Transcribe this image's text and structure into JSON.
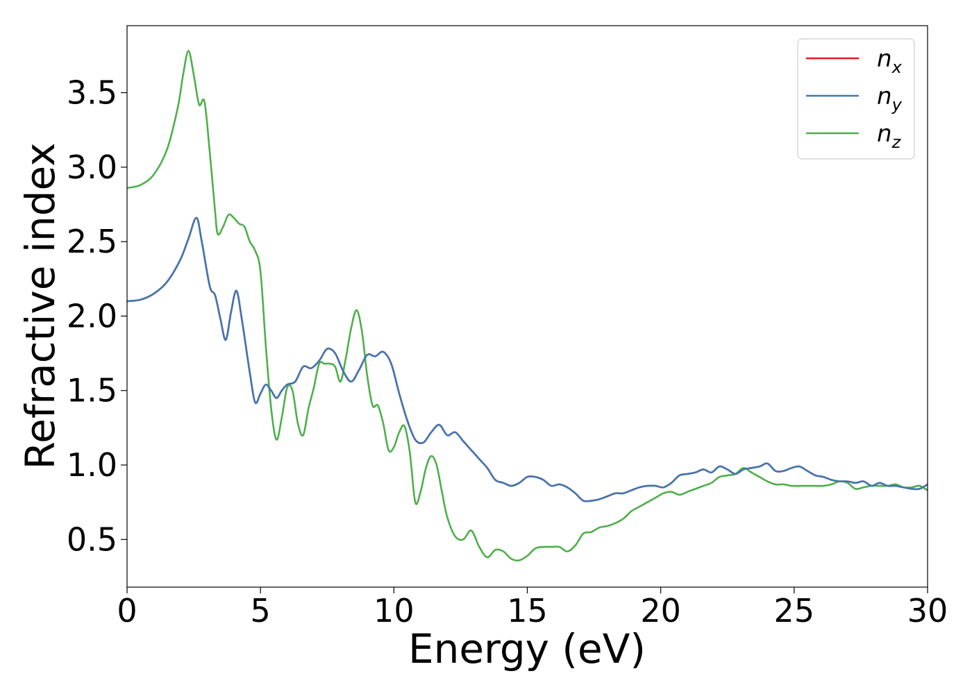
{
  "chart_data": {
    "type": "line",
    "xlabel": "Energy (eV)",
    "ylabel": "Refractive index",
    "xlim": [
      0,
      30
    ],
    "ylim": [
      0.18,
      3.95
    ],
    "x_ticks": [
      0,
      5,
      10,
      15,
      20,
      25,
      30
    ],
    "y_ticks": [
      0.5,
      1.0,
      1.5,
      2.0,
      2.5,
      3.0,
      3.5
    ],
    "x_tick_labels": [
      "0",
      "5",
      "10",
      "15",
      "20",
      "25",
      "30"
    ],
    "y_tick_labels": [
      "0.5",
      "1.0",
      "1.5",
      "2.0",
      "2.5",
      "3.0",
      "3.5"
    ],
    "grid": false,
    "legend_position": "top-right",
    "series": [
      {
        "name": "n_x",
        "label_base": "n",
        "label_sub": "x",
        "color": "#e41a1c",
        "x": [
          0,
          0.5,
          1,
          1.5,
          2,
          2.3,
          2.6,
          2.8,
          3.1,
          3.3,
          3.5,
          3.7,
          3.9,
          4.1,
          4.3,
          4.6,
          4.8,
          5.0,
          5.2,
          5.4,
          5.6,
          5.8,
          6.0,
          6.3,
          6.6,
          6.9,
          7.2,
          7.5,
          7.8,
          8.1,
          8.4,
          8.7,
          9.0,
          9.3,
          9.6,
          9.9,
          10.2,
          10.5,
          10.8,
          11.1,
          11.4,
          11.7,
          12.0,
          12.3,
          12.6,
          12.9,
          13.2,
          13.5,
          13.8,
          14.1,
          14.4,
          14.7,
          15.0,
          15.3,
          15.6,
          15.9,
          16.2,
          16.5,
          16.8,
          17.1,
          17.4,
          17.7,
          18.0,
          18.3,
          18.6,
          18.9,
          19.2,
          19.5,
          19.8,
          20.1,
          20.4,
          20.7,
          21.0,
          21.3,
          21.6,
          21.9,
          22.2,
          22.5,
          22.8,
          23.1,
          23.4,
          23.7,
          24.0,
          24.3,
          24.6,
          24.9,
          25.2,
          25.5,
          25.8,
          26.1,
          26.4,
          26.7,
          27.0,
          27.3,
          27.6,
          27.9,
          28.2,
          28.5,
          28.8,
          29.1,
          29.4,
          29.7,
          30.0
        ],
        "y": [
          2.1,
          2.11,
          2.15,
          2.23,
          2.38,
          2.52,
          2.66,
          2.5,
          2.2,
          2.14,
          1.98,
          1.84,
          2.03,
          2.17,
          1.98,
          1.62,
          1.42,
          1.48,
          1.54,
          1.5,
          1.45,
          1.5,
          1.54,
          1.56,
          1.66,
          1.65,
          1.7,
          1.78,
          1.75,
          1.63,
          1.56,
          1.64,
          1.74,
          1.73,
          1.76,
          1.68,
          1.48,
          1.3,
          1.17,
          1.15,
          1.22,
          1.27,
          1.2,
          1.22,
          1.16,
          1.1,
          1.04,
          0.98,
          0.9,
          0.88,
          0.86,
          0.88,
          0.92,
          0.92,
          0.9,
          0.86,
          0.87,
          0.85,
          0.81,
          0.76,
          0.76,
          0.77,
          0.79,
          0.81,
          0.81,
          0.83,
          0.85,
          0.86,
          0.86,
          0.85,
          0.88,
          0.93,
          0.94,
          0.95,
          0.97,
          0.95,
          0.99,
          0.97,
          0.94,
          0.97,
          0.98,
          0.99,
          1.01,
          0.96,
          0.96,
          0.98,
          0.99,
          0.96,
          0.93,
          0.92,
          0.9,
          0.89,
          0.89,
          0.88,
          0.89,
          0.86,
          0.88,
          0.86,
          0.86,
          0.85,
          0.84,
          0.84,
          0.87
        ]
      },
      {
        "name": "n_y",
        "label_base": "n",
        "label_sub": "y",
        "color": "#3f77b2",
        "x": [
          0,
          0.5,
          1,
          1.5,
          2,
          2.3,
          2.6,
          2.8,
          3.1,
          3.3,
          3.5,
          3.7,
          3.9,
          4.1,
          4.3,
          4.6,
          4.8,
          5.0,
          5.2,
          5.4,
          5.6,
          5.8,
          6.0,
          6.3,
          6.6,
          6.9,
          7.2,
          7.5,
          7.8,
          8.1,
          8.4,
          8.7,
          9.0,
          9.3,
          9.6,
          9.9,
          10.2,
          10.5,
          10.8,
          11.1,
          11.4,
          11.7,
          12.0,
          12.3,
          12.6,
          12.9,
          13.2,
          13.5,
          13.8,
          14.1,
          14.4,
          14.7,
          15.0,
          15.3,
          15.6,
          15.9,
          16.2,
          16.5,
          16.8,
          17.1,
          17.4,
          17.7,
          18.0,
          18.3,
          18.6,
          18.9,
          19.2,
          19.5,
          19.8,
          20.1,
          20.4,
          20.7,
          21.0,
          21.3,
          21.6,
          21.9,
          22.2,
          22.5,
          22.8,
          23.1,
          23.4,
          23.7,
          24.0,
          24.3,
          24.6,
          24.9,
          25.2,
          25.5,
          25.8,
          26.1,
          26.4,
          26.7,
          27.0,
          27.3,
          27.6,
          27.9,
          28.2,
          28.5,
          28.8,
          29.1,
          29.4,
          29.7,
          30.0
        ],
        "y": [
          2.1,
          2.11,
          2.15,
          2.23,
          2.38,
          2.52,
          2.66,
          2.5,
          2.2,
          2.14,
          1.98,
          1.84,
          2.03,
          2.17,
          1.98,
          1.62,
          1.42,
          1.48,
          1.54,
          1.5,
          1.45,
          1.5,
          1.54,
          1.56,
          1.66,
          1.65,
          1.7,
          1.78,
          1.75,
          1.63,
          1.56,
          1.64,
          1.74,
          1.73,
          1.76,
          1.68,
          1.48,
          1.3,
          1.17,
          1.15,
          1.22,
          1.27,
          1.2,
          1.22,
          1.16,
          1.1,
          1.04,
          0.98,
          0.9,
          0.88,
          0.86,
          0.88,
          0.92,
          0.92,
          0.9,
          0.86,
          0.87,
          0.85,
          0.81,
          0.76,
          0.76,
          0.77,
          0.79,
          0.81,
          0.81,
          0.83,
          0.85,
          0.86,
          0.86,
          0.85,
          0.88,
          0.93,
          0.94,
          0.95,
          0.97,
          0.95,
          0.99,
          0.97,
          0.94,
          0.97,
          0.98,
          0.99,
          1.01,
          0.96,
          0.96,
          0.98,
          0.99,
          0.96,
          0.93,
          0.92,
          0.9,
          0.89,
          0.89,
          0.88,
          0.89,
          0.86,
          0.88,
          0.86,
          0.86,
          0.85,
          0.84,
          0.84,
          0.87
        ]
      },
      {
        "name": "n_z",
        "label_base": "n",
        "label_sub": "z",
        "color": "#4daf4a",
        "x": [
          0,
          0.5,
          1,
          1.5,
          1.9,
          2.1,
          2.3,
          2.5,
          2.7,
          2.9,
          3.1,
          3.3,
          3.4,
          3.6,
          3.8,
          4.0,
          4.2,
          4.4,
          4.6,
          4.8,
          5.0,
          5.2,
          5.4,
          5.6,
          5.8,
          6.0,
          6.2,
          6.4,
          6.6,
          6.8,
          7.0,
          7.2,
          7.4,
          7.6,
          7.8,
          8.0,
          8.2,
          8.4,
          8.6,
          8.8,
          9.0,
          9.2,
          9.4,
          9.6,
          9.8,
          10.0,
          10.2,
          10.4,
          10.6,
          10.8,
          11.0,
          11.2,
          11.4,
          11.6,
          11.8,
          12.0,
          12.3,
          12.6,
          12.9,
          13.2,
          13.5,
          13.8,
          14.1,
          14.4,
          14.7,
          15.0,
          15.3,
          15.6,
          15.9,
          16.2,
          16.5,
          16.8,
          17.1,
          17.4,
          17.7,
          18.0,
          18.3,
          18.6,
          18.9,
          19.2,
          19.5,
          19.8,
          20.1,
          20.4,
          20.7,
          21.0,
          21.3,
          21.6,
          21.9,
          22.2,
          22.5,
          22.8,
          23.1,
          23.4,
          23.7,
          24.0,
          24.3,
          24.6,
          24.9,
          25.2,
          25.5,
          25.8,
          26.1,
          26.4,
          26.7,
          27.0,
          27.3,
          27.6,
          27.9,
          28.2,
          28.5,
          28.8,
          29.1,
          29.4,
          29.7,
          30.0
        ],
        "y": [
          2.86,
          2.88,
          2.95,
          3.12,
          3.4,
          3.62,
          3.78,
          3.62,
          3.42,
          3.44,
          3.1,
          2.7,
          2.55,
          2.6,
          2.68,
          2.66,
          2.62,
          2.6,
          2.5,
          2.44,
          2.3,
          1.8,
          1.38,
          1.17,
          1.32,
          1.52,
          1.5,
          1.28,
          1.2,
          1.38,
          1.52,
          1.68,
          1.68,
          1.68,
          1.66,
          1.56,
          1.72,
          1.92,
          2.04,
          1.9,
          1.6,
          1.4,
          1.4,
          1.28,
          1.1,
          1.12,
          1.22,
          1.26,
          1.08,
          0.75,
          0.82,
          0.98,
          1.06,
          1.0,
          0.82,
          0.65,
          0.52,
          0.5,
          0.56,
          0.45,
          0.38,
          0.43,
          0.42,
          0.37,
          0.36,
          0.39,
          0.44,
          0.45,
          0.45,
          0.45,
          0.42,
          0.46,
          0.54,
          0.55,
          0.58,
          0.59,
          0.61,
          0.64,
          0.69,
          0.72,
          0.75,
          0.78,
          0.81,
          0.82,
          0.8,
          0.82,
          0.84,
          0.86,
          0.88,
          0.92,
          0.93,
          0.94,
          0.98,
          0.95,
          0.92,
          0.89,
          0.87,
          0.87,
          0.86,
          0.86,
          0.86,
          0.86,
          0.86,
          0.87,
          0.89,
          0.88,
          0.84,
          0.85,
          0.86,
          0.86,
          0.86,
          0.87,
          0.85,
          0.85,
          0.86,
          0.83
        ]
      }
    ]
  }
}
